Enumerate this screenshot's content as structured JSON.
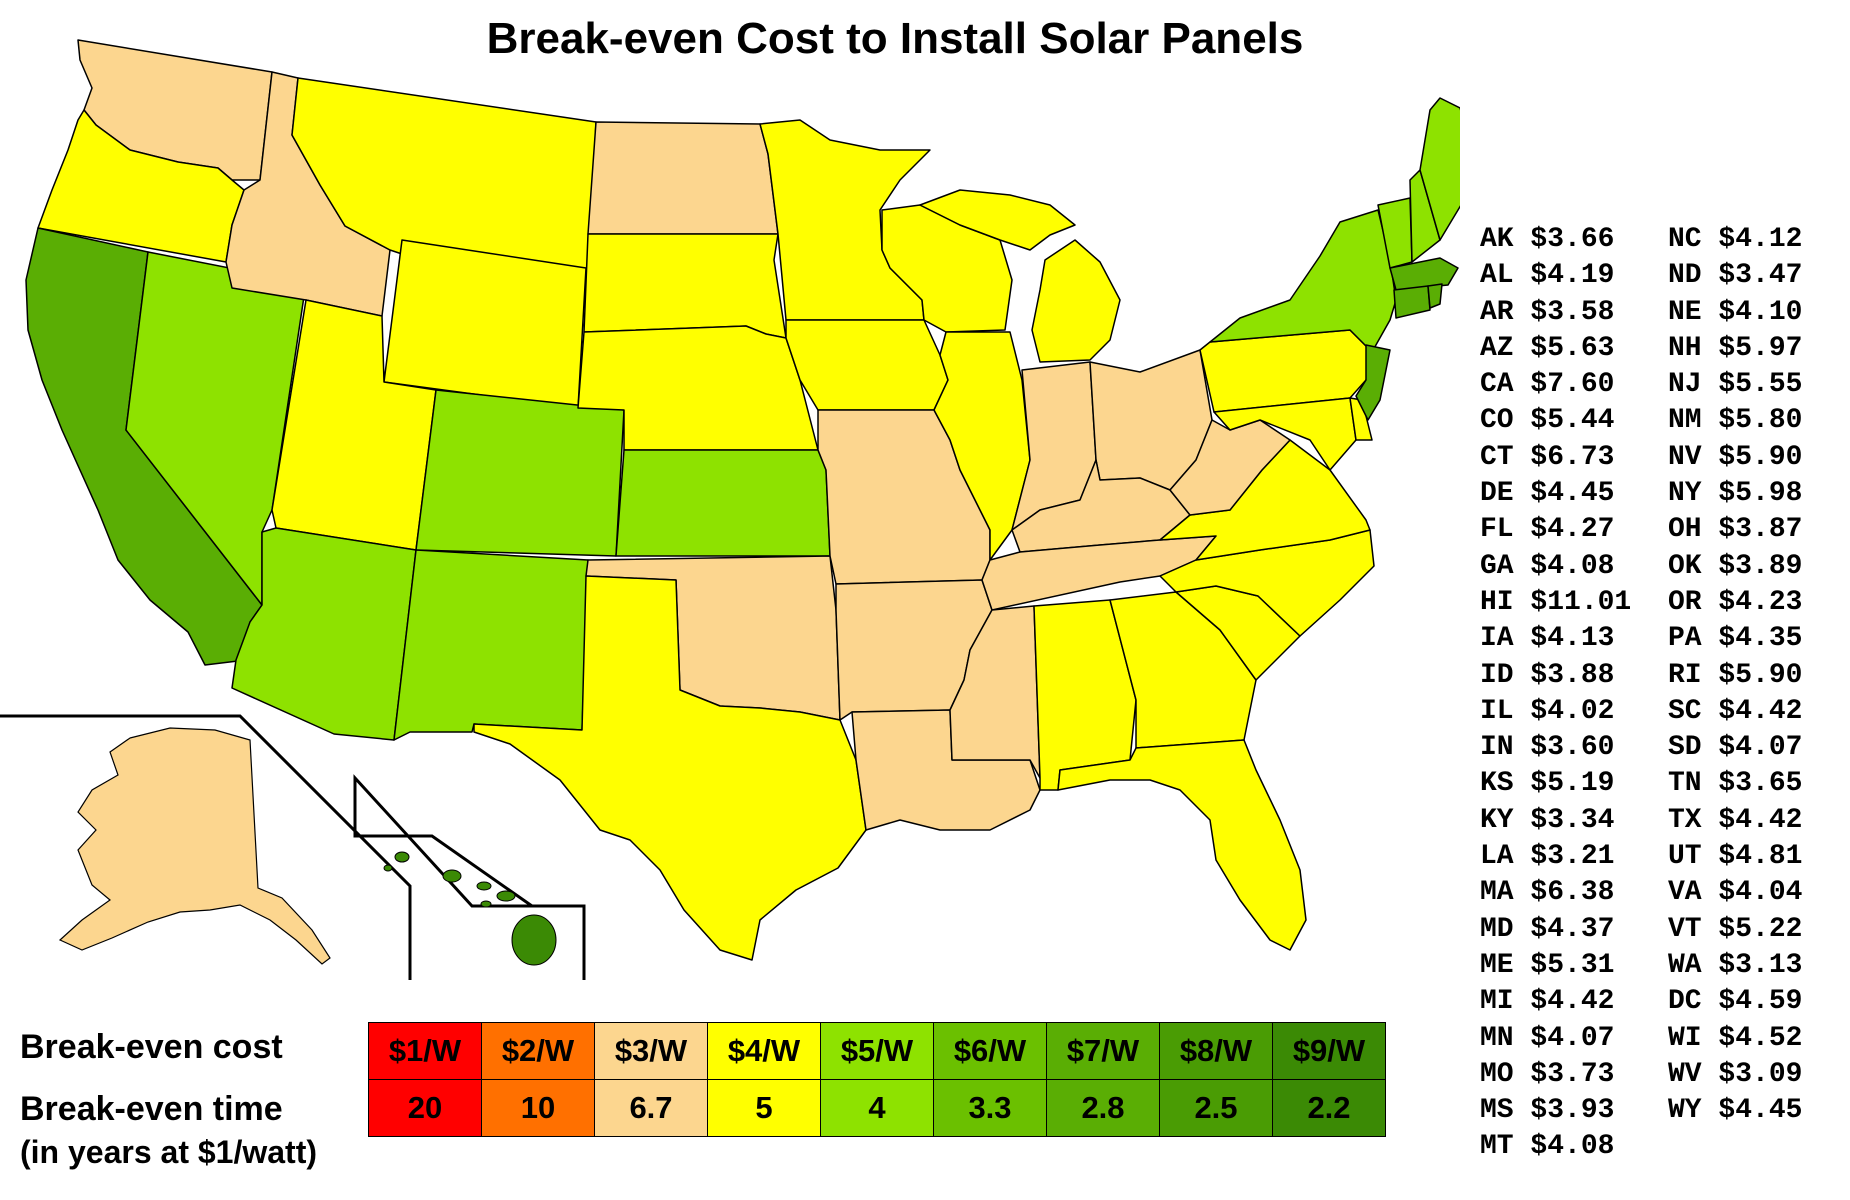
{
  "title": "Break-even Cost to Install Solar Panels",
  "colors": {
    "tan": "#fcd68f",
    "yellow": "#ffff00",
    "light_green": "#8ee200",
    "green": "#6bc000",
    "mid_green": "#5aae04",
    "dark_green": "#3b8a05",
    "outline": "#000000"
  },
  "states": [
    {
      "code": "AK",
      "value": "$3.66"
    },
    {
      "code": "AL",
      "value": "$4.19"
    },
    {
      "code": "AR",
      "value": "$3.58"
    },
    {
      "code": "AZ",
      "value": "$5.63"
    },
    {
      "code": "CA",
      "value": "$7.60"
    },
    {
      "code": "CO",
      "value": "$5.44"
    },
    {
      "code": "CT",
      "value": "$6.73"
    },
    {
      "code": "DE",
      "value": "$4.45"
    },
    {
      "code": "FL",
      "value": "$4.27"
    },
    {
      "code": "GA",
      "value": "$4.08"
    },
    {
      "code": "HI",
      "value": "$11.01"
    },
    {
      "code": "IA",
      "value": "$4.13"
    },
    {
      "code": "ID",
      "value": "$3.88"
    },
    {
      "code": "IL",
      "value": "$4.02"
    },
    {
      "code": "IN",
      "value": "$3.60"
    },
    {
      "code": "KS",
      "value": "$5.19"
    },
    {
      "code": "KY",
      "value": "$3.34"
    },
    {
      "code": "LA",
      "value": "$3.21"
    },
    {
      "code": "MA",
      "value": "$6.38"
    },
    {
      "code": "MD",
      "value": "$4.37"
    },
    {
      "code": "ME",
      "value": "$5.31"
    },
    {
      "code": "MI",
      "value": "$4.42"
    },
    {
      "code": "MN",
      "value": "$4.07"
    },
    {
      "code": "MO",
      "value": "$3.73"
    },
    {
      "code": "MS",
      "value": "$3.93"
    },
    {
      "code": "MT",
      "value": "$4.08"
    },
    {
      "code": "NC",
      "value": "$4.12"
    },
    {
      "code": "ND",
      "value": "$3.47"
    },
    {
      "code": "NE",
      "value": "$4.10"
    },
    {
      "code": "NH",
      "value": "$5.97"
    },
    {
      "code": "NJ",
      "value": "$5.55"
    },
    {
      "code": "NM",
      "value": "$5.80"
    },
    {
      "code": "NV",
      "value": "$5.90"
    },
    {
      "code": "NY",
      "value": "$5.98"
    },
    {
      "code": "OH",
      "value": "$3.87"
    },
    {
      "code": "OK",
      "value": "$3.89"
    },
    {
      "code": "OR",
      "value": "$4.23"
    },
    {
      "code": "PA",
      "value": "$4.35"
    },
    {
      "code": "RI",
      "value": "$5.90"
    },
    {
      "code": "SC",
      "value": "$4.42"
    },
    {
      "code": "SD",
      "value": "$4.07"
    },
    {
      "code": "TN",
      "value": "$3.65"
    },
    {
      "code": "TX",
      "value": "$4.42"
    },
    {
      "code": "UT",
      "value": "$4.81"
    },
    {
      "code": "VA",
      "value": "$4.04"
    },
    {
      "code": "VT",
      "value": "$5.22"
    },
    {
      "code": "WA",
      "value": "$3.13"
    },
    {
      "code": "DC",
      "value": "$4.59"
    },
    {
      "code": "WI",
      "value": "$4.52"
    },
    {
      "code": "WV",
      "value": "$3.09"
    },
    {
      "code": "WY",
      "value": "$4.45"
    }
  ],
  "legend": {
    "cost_label": "Break-even cost",
    "time_label": "Break-even time",
    "time_note": "(in years at $1/watt)",
    "bins": [
      {
        "cost": "$1/W",
        "time": "20",
        "color": "#ff0000"
      },
      {
        "cost": "$2/W",
        "time": "10",
        "color": "#ff7000"
      },
      {
        "cost": "$3/W",
        "time": "6.7",
        "color": "#fcd68f"
      },
      {
        "cost": "$4/W",
        "time": "5",
        "color": "#ffff00"
      },
      {
        "cost": "$5/W",
        "time": "4",
        "color": "#8ee200"
      },
      {
        "cost": "$6/W",
        "time": "3.3",
        "color": "#6bc000"
      },
      {
        "cost": "$7/W",
        "time": "2.8",
        "color": "#5aae04"
      },
      {
        "cost": "$8/W",
        "time": "2.5",
        "color": "#4a9c04"
      },
      {
        "cost": "$9/W",
        "time": "2.2",
        "color": "#3b8a05"
      }
    ]
  }
}
